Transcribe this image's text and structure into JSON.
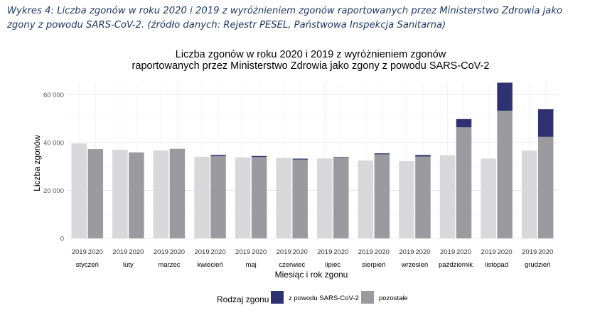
{
  "caption": "Wykres 4: Liczba zgonów w roku 2020 i 2019 z wyróżnieniem zgonów raportowanych przez Ministerstwo Zdrowia jako zgony z powodu SARS-CoV-2. (źródło danych: Rejestr PESEL, Państwowa Inspekcja Sanitarna)",
  "chart_data": {
    "type": "bar",
    "title_lines": [
      "Liczba zgonów w roku 2020 i 2019 z wyróżnieniem zgonów",
      "raportowanych przez Ministerstwo Zdrowia jako zgony z powodu SARS-CoV-2"
    ],
    "xlabel": "Miesiąc i rok zgonu",
    "ylabel": "Liczba zgonów",
    "ylim": [
      0,
      65000
    ],
    "y_ticks": [
      0,
      20000,
      40000,
      60000
    ],
    "y_tick_labels": [
      "0",
      "20 000",
      "40 000",
      "60 000"
    ],
    "grid": true,
    "categories": [
      "styczeń",
      "luty",
      "marzec",
      "kwiecień",
      "maj",
      "czerwiec",
      "lipiec",
      "sierpień",
      "wrzesień",
      "październik",
      "listopad",
      "grudzień"
    ],
    "years": [
      "2019",
      "2020"
    ],
    "series_2019": {
      "values": [
        39600,
        37000,
        36700,
        34100,
        33800,
        33600,
        33400,
        32500,
        32300,
        34700,
        33300,
        36600
      ]
    },
    "series_2020": [
      {
        "name": "z powodu SARS-CoV-2",
        "values": [
          0,
          0,
          0,
          500,
          400,
          400,
          200,
          400,
          600,
          3400,
          11700,
          11500
        ]
      },
      {
        "name": "pozostałe",
        "values": [
          37300,
          35900,
          37400,
          34300,
          34000,
          32900,
          33800,
          35100,
          34200,
          46400,
          53300,
          42400
        ]
      }
    ],
    "legend": {
      "title": "Rodzaj zgonu",
      "position": "bottom",
      "items": [
        {
          "label": "z powodu SARS-CoV-2",
          "color": "#2E3270"
        },
        {
          "label": "pozostałe",
          "color": "#9B9B9F"
        }
      ]
    },
    "colors": {
      "covid": "#2E3270",
      "other_2020": "#9B9B9F",
      "year_2019": "#D8D8DA",
      "grid": "#EBEBEB"
    }
  }
}
